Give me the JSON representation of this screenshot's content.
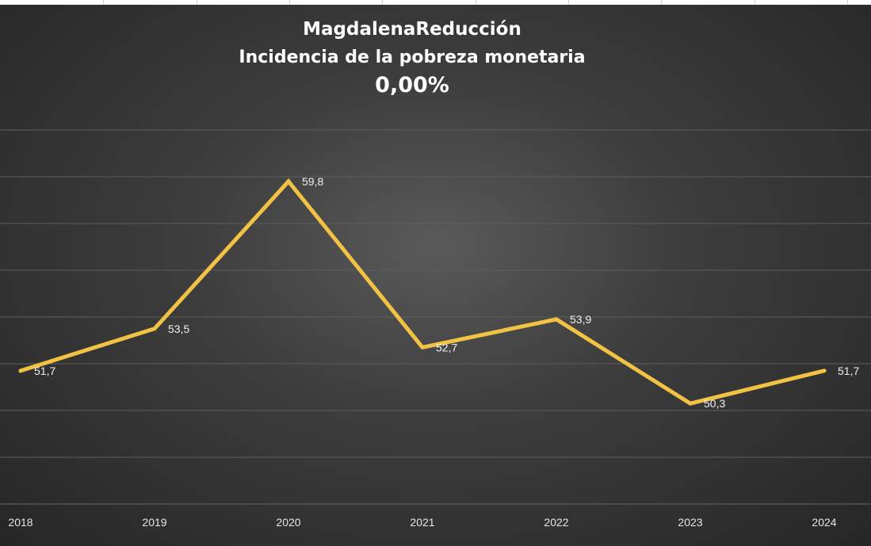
{
  "chart_data": {
    "type": "line",
    "title": "MagdalenaReducción",
    "subtitle": "Incidencia de la pobreza monetaria",
    "headline_value": "0,00%",
    "categories": [
      "2018",
      "2019",
      "2020",
      "2021",
      "2022",
      "2023",
      "2024"
    ],
    "series": [
      {
        "values": [
          51.7,
          53.5,
          59.8,
          52.7,
          53.9,
          50.3,
          51.7
        ],
        "labels": [
          "51,7",
          "53,5",
          "59,8",
          "52,7",
          "53,9",
          "50,3",
          "51,7"
        ],
        "color": "#f2c244"
      }
    ],
    "ylim": [
      46,
      62
    ],
    "grid": true,
    "legend": "none",
    "colors": {
      "background": "#3d3d3d",
      "gridline": "#5e5e5e",
      "line": "#f2c244",
      "text": "#ffffff"
    }
  }
}
